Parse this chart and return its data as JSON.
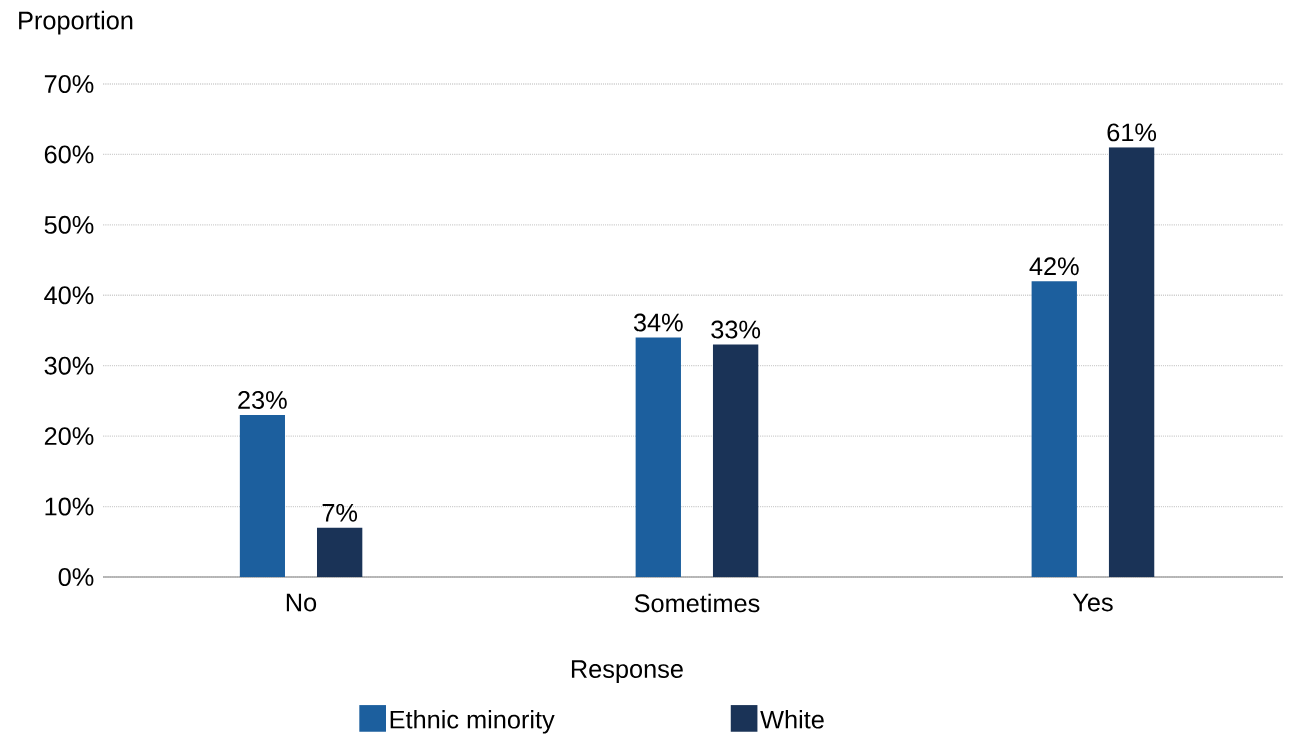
{
  "chart_data": {
    "type": "bar",
    "xlabel": "Response",
    "ylabel": "Proportion",
    "categories": [
      "No",
      "Sometimes",
      "Yes"
    ],
    "series": [
      {
        "name": "Ethnic minority",
        "color": "#1c5f9e",
        "values": [
          23,
          34,
          42
        ],
        "value_labels": [
          "23%",
          "34%",
          "42%"
        ]
      },
      {
        "name": "White",
        "color": "#1a3357",
        "values": [
          7,
          33,
          61
        ],
        "value_labels": [
          "7%",
          "33%",
          "61%"
        ]
      }
    ],
    "ylim": [
      0,
      70
    ],
    "yticks": [
      {
        "value": 0,
        "label": "0%"
      },
      {
        "value": 10,
        "label": "10%"
      },
      {
        "value": 20,
        "label": "20%"
      },
      {
        "value": 30,
        "label": "30%"
      },
      {
        "value": 40,
        "label": "40%"
      },
      {
        "value": 50,
        "label": "50%"
      },
      {
        "value": 60,
        "label": "60%"
      },
      {
        "value": 70,
        "label": "70%"
      }
    ],
    "grid": "y",
    "legend": "bottom"
  }
}
